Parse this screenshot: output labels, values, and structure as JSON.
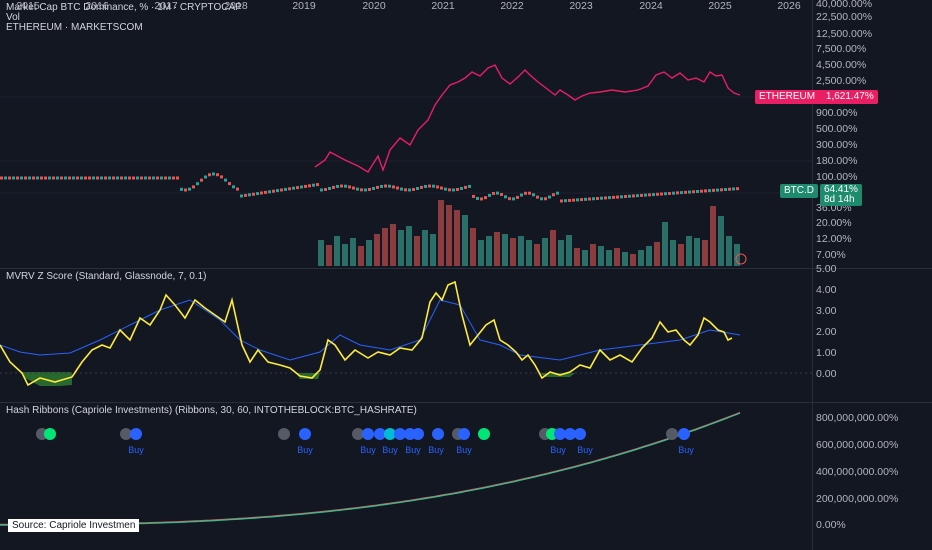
{
  "main_pane": {
    "title": "Market Cap BTC Dominance, % · 1M · CRYPTOCAP",
    "vol_label": "Vol",
    "overlay_label": "ETHEREUM · MARKETSCOM",
    "y_ticks": [
      "40,000.00%",
      "22,500.00%",
      "12,500.00%",
      "7,500.00%",
      "4,500.00%",
      "2,500.00%",
      "900.00%",
      "500.00%",
      "300.00%",
      "180.00%",
      "100.00%",
      "36.00%",
      "20.00%",
      "12.00%",
      "7.00%"
    ],
    "eth_badge_name": "ETHEREUM",
    "eth_badge_value": "1,621.47%",
    "btcd_badge_name": "BTC.D",
    "btcd_badge_value": "64.41%",
    "btcd_badge_time": "8d 14h"
  },
  "mvrv_pane": {
    "title": "MVRV Z Score (Standard, Glassnode, 7, 0.1)",
    "y_ticks": [
      "5.00",
      "4.00",
      "3.00",
      "2.00",
      "1.00",
      "0.00"
    ]
  },
  "hash_pane": {
    "title": "Hash Ribbons (Capriole Investments) (Ribbons, 30, 60, INTOTHEBLOCK:BTC_HASHRATE)",
    "y_ticks": [
      "800,000,000.00%",
      "600,000,000.00%",
      "400,000,000.00%",
      "200,000,000.00%",
      "0.00%"
    ],
    "buy_label": "Buy",
    "source_label": "Source: Capriole Investmen"
  },
  "x_axis": [
    "2015",
    "2016",
    "2017",
    "2018",
    "2019",
    "2020",
    "2021",
    "2022",
    "2023",
    "2024",
    "2025",
    "2026"
  ],
  "colors": {
    "background": "#131722",
    "eth_line": "#e91e63",
    "mvrv_line": "#ffeb3b",
    "mvrv_avg": "#2962ff",
    "candle_up": "#26a69a",
    "candle_down": "#ef5350",
    "buy_dot": "#2962ff",
    "green_dot": "#00e676"
  }
}
